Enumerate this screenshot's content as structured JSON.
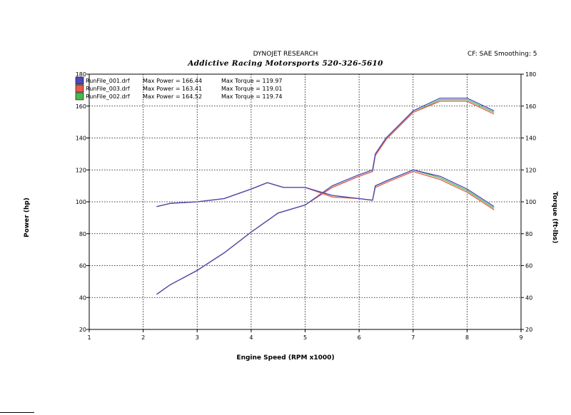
{
  "header": {
    "title": "DYNOJET RESEARCH",
    "subtitle": "Addictive Racing Motorsports 520-326-5610",
    "cf_smoothing": "CF: SAE  Smoothing: 5"
  },
  "chart_data": {
    "type": "line",
    "xlabel": "Engine Speed (RPM x1000)",
    "ylabel_left": "Power (hp)",
    "ylabel_right": "Torque (ft-lbs)",
    "xlim": [
      1,
      9
    ],
    "ylim": [
      20,
      180
    ],
    "xticks": [
      "1",
      "2",
      "3",
      "4",
      "5",
      "6",
      "7",
      "8",
      "9"
    ],
    "yticks": [
      "20",
      "40",
      "60",
      "80",
      "100",
      "120",
      "140",
      "160",
      "180"
    ],
    "grid": true,
    "legend_position": "top-left",
    "legend": [
      {
        "file": "RunFile_001.drf",
        "power_text": "Max Power = 166.44",
        "torque_text": "Max Torque = 119.97",
        "color": "#4a4ab8"
      },
      {
        "file": "RunFile_003.drf",
        "power_text": "Max Power = 163.41",
        "torque_text": "Max Torque = 119.01",
        "color": "#e85a4a"
      },
      {
        "file": "RunFile_002.drf",
        "power_text": "Max Power = 164.52",
        "torque_text": "Max Torque = 119.74",
        "color": "#4ab84a"
      }
    ],
    "power": {
      "x": [
        2.25,
        2.5,
        3.0,
        3.5,
        4.0,
        4.5,
        5.0,
        5.5,
        6.0,
        6.25,
        6.3,
        6.5,
        7.0,
        7.5,
        8.0,
        8.5
      ],
      "series": [
        {
          "name": "RunFile_001.drf",
          "values": [
            42,
            48,
            57,
            68,
            81,
            93,
            98,
            110,
            117,
            120,
            130,
            140,
            157,
            165,
            165,
            157
          ]
        },
        {
          "name": "RunFile_003.drf",
          "values": [
            42,
            48,
            57,
            68,
            81,
            93,
            98,
            109,
            116,
            119,
            129,
            139,
            156,
            163,
            163,
            155
          ]
        },
        {
          "name": "RunFile_002.drf",
          "values": [
            42,
            48,
            57,
            68,
            81,
            93,
            98,
            109,
            116,
            119,
            129,
            139,
            156,
            164,
            164,
            156
          ]
        }
      ]
    },
    "torque": {
      "x": [
        2.25,
        2.5,
        3.0,
        3.5,
        4.0,
        4.3,
        4.6,
        5.0,
        5.5,
        6.0,
        6.25,
        6.3,
        6.5,
        7.0,
        7.5,
        8.0,
        8.5
      ],
      "series": [
        {
          "name": "RunFile_001.drf",
          "values": [
            97,
            99,
            100,
            102,
            108,
            112,
            109,
            109,
            104,
            102,
            101,
            110,
            113,
            120,
            116,
            108,
            97
          ]
        },
        {
          "name": "RunFile_003.drf",
          "values": [
            97,
            99,
            100,
            102,
            108,
            112,
            109,
            109,
            103,
            102,
            101,
            109,
            112,
            119,
            114,
            106,
            95
          ]
        },
        {
          "name": "RunFile_002.drf",
          "values": [
            97,
            99,
            100,
            102,
            108,
            112,
            109,
            109,
            104,
            102,
            101,
            110,
            113,
            120,
            115,
            107,
            96
          ]
        }
      ]
    }
  }
}
